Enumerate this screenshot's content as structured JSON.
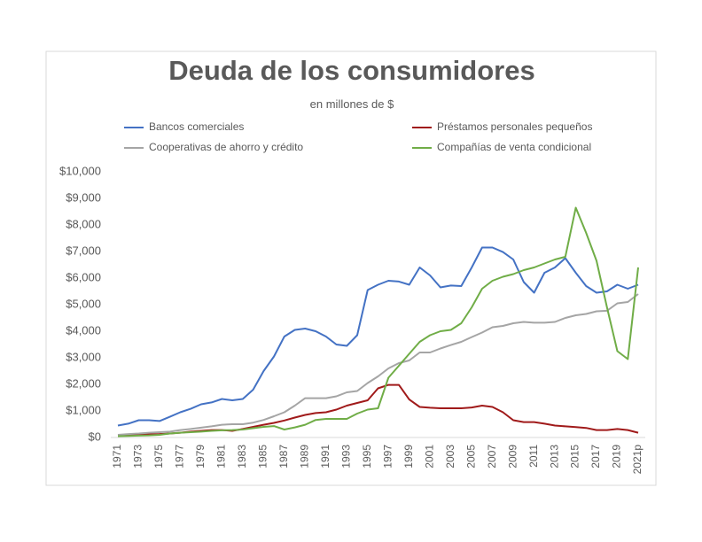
{
  "chart_data": {
    "type": "line",
    "title": "Deuda de los consumidores",
    "subtitle": "en millones de $",
    "categories": [
      "1971",
      null,
      "1973",
      null,
      "1975",
      null,
      "1977",
      null,
      "1979",
      null,
      "1981",
      null,
      "1983",
      null,
      "1985",
      null,
      "1987",
      null,
      "1989",
      null,
      "1991",
      null,
      "1993",
      null,
      "1995",
      null,
      "1997",
      null,
      "1999",
      null,
      "2001",
      null,
      "2003",
      null,
      "2005",
      null,
      "2007",
      null,
      "2009",
      null,
      "2011",
      null,
      "2013",
      null,
      "2015",
      null,
      "2017",
      null,
      "2019",
      null,
      "2021p"
    ],
    "series": [
      {
        "name": "Bancos comerciales",
        "color": "#4472c4",
        "values": [
          450,
          520,
          650,
          650,
          620,
          780,
          950,
          1080,
          1250,
          1320,
          1450,
          1400,
          1450,
          1800,
          2500,
          3050,
          3800,
          4050,
          4100,
          4000,
          3800,
          3500,
          3450,
          3850,
          5550,
          5750,
          5900,
          5870,
          5750,
          6400,
          6100,
          5650,
          5720,
          5700,
          6400,
          7150,
          7150,
          6980,
          6700,
          5850,
          5450,
          6200,
          6400,
          6750,
          6200,
          5700,
          5450,
          5500,
          5750,
          5600,
          5750
        ]
      },
      {
        "name": "Préstamos personales pequeños",
        "color": "#a01a1a",
        "values": [
          80,
          90,
          100,
          120,
          130,
          150,
          180,
          220,
          250,
          280,
          280,
          250,
          320,
          400,
          480,
          550,
          640,
          750,
          850,
          920,
          950,
          1050,
          1200,
          1300,
          1400,
          1850,
          1980,
          1980,
          1430,
          1150,
          1120,
          1100,
          1100,
          1100,
          1130,
          1200,
          1150,
          950,
          650,
          580,
          580,
          520,
          450,
          420,
          390,
          360,
          280,
          280,
          320,
          280,
          180
        ]
      },
      {
        "name": "Cooperativas de ahorro y  crédito",
        "color": "#a5a5a5",
        "values": [
          100,
          130,
          150,
          180,
          200,
          220,
          280,
          320,
          370,
          420,
          480,
          500,
          500,
          560,
          660,
          800,
          950,
          1200,
          1480,
          1480,
          1480,
          1550,
          1700,
          1750,
          2050,
          2300,
          2600,
          2800,
          2900,
          3200,
          3200,
          3350,
          3480,
          3600,
          3780,
          3950,
          4150,
          4200,
          4300,
          4350,
          4320,
          4320,
          4350,
          4500,
          4600,
          4650,
          4750,
          4770,
          5050,
          5100,
          5400
        ]
      },
      {
        "name": "Compañías de venta condicional",
        "color": "#70ad47",
        "values": [
          50,
          60,
          70,
          80,
          100,
          150,
          180,
          200,
          220,
          250,
          270,
          280,
          300,
          350,
          400,
          430,
          300,
          380,
          480,
          660,
          700,
          700,
          700,
          900,
          1050,
          1100,
          2250,
          2700,
          3150,
          3600,
          3850,
          4000,
          4050,
          4300,
          4900,
          5600,
          5900,
          6050,
          6150,
          6300,
          6400,
          6550,
          6700,
          6800,
          8650,
          7700,
          6650,
          4900,
          3250,
          2950,
          6400
        ]
      }
    ],
    "ylim": [
      0,
      10000
    ],
    "yticks": [
      {
        "value": 0,
        "label": "$0"
      },
      {
        "value": 1000,
        "label": "$1,000"
      },
      {
        "value": 2000,
        "label": "$2,000"
      },
      {
        "value": 3000,
        "label": "$3,000"
      },
      {
        "value": 4000,
        "label": "$4,000"
      },
      {
        "value": 5000,
        "label": "$5,000"
      },
      {
        "value": 6000,
        "label": "$6,000"
      },
      {
        "value": 7000,
        "label": "$7,000"
      },
      {
        "value": 8000,
        "label": "$8,000"
      },
      {
        "value": 9000,
        "label": "$9,000"
      },
      {
        "value": 10000,
        "label": "$10,000"
      }
    ],
    "grid": false
  }
}
